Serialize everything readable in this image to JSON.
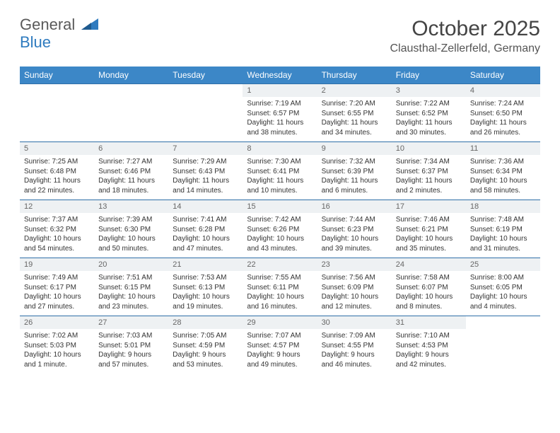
{
  "logo": {
    "word1": "General",
    "word2": "Blue"
  },
  "title": "October 2025",
  "location": "Clausthal-Zellerfeld, Germany",
  "colors": {
    "header_bg": "#3c87c7",
    "header_text": "#ffffff",
    "daynum_bg": "#eef1f3",
    "border": "#2f6fa8",
    "logo_gray": "#5a5a5a",
    "logo_blue": "#2f7bbf"
  },
  "daynames": [
    "Sunday",
    "Monday",
    "Tuesday",
    "Wednesday",
    "Thursday",
    "Friday",
    "Saturday"
  ],
  "weeks": [
    [
      {
        "n": "",
        "l1": "",
        "l2": "",
        "l3": "",
        "l4": "",
        "empty": true
      },
      {
        "n": "",
        "l1": "",
        "l2": "",
        "l3": "",
        "l4": "",
        "empty": true
      },
      {
        "n": "",
        "l1": "",
        "l2": "",
        "l3": "",
        "l4": "",
        "empty": true
      },
      {
        "n": "1",
        "l1": "Sunrise: 7:19 AM",
        "l2": "Sunset: 6:57 PM",
        "l3": "Daylight: 11 hours",
        "l4": "and 38 minutes."
      },
      {
        "n": "2",
        "l1": "Sunrise: 7:20 AM",
        "l2": "Sunset: 6:55 PM",
        "l3": "Daylight: 11 hours",
        "l4": "and 34 minutes."
      },
      {
        "n": "3",
        "l1": "Sunrise: 7:22 AM",
        "l2": "Sunset: 6:52 PM",
        "l3": "Daylight: 11 hours",
        "l4": "and 30 minutes."
      },
      {
        "n": "4",
        "l1": "Sunrise: 7:24 AM",
        "l2": "Sunset: 6:50 PM",
        "l3": "Daylight: 11 hours",
        "l4": "and 26 minutes."
      }
    ],
    [
      {
        "n": "5",
        "l1": "Sunrise: 7:25 AM",
        "l2": "Sunset: 6:48 PM",
        "l3": "Daylight: 11 hours",
        "l4": "and 22 minutes."
      },
      {
        "n": "6",
        "l1": "Sunrise: 7:27 AM",
        "l2": "Sunset: 6:46 PM",
        "l3": "Daylight: 11 hours",
        "l4": "and 18 minutes."
      },
      {
        "n": "7",
        "l1": "Sunrise: 7:29 AM",
        "l2": "Sunset: 6:43 PM",
        "l3": "Daylight: 11 hours",
        "l4": "and 14 minutes."
      },
      {
        "n": "8",
        "l1": "Sunrise: 7:30 AM",
        "l2": "Sunset: 6:41 PM",
        "l3": "Daylight: 11 hours",
        "l4": "and 10 minutes."
      },
      {
        "n": "9",
        "l1": "Sunrise: 7:32 AM",
        "l2": "Sunset: 6:39 PM",
        "l3": "Daylight: 11 hours",
        "l4": "and 6 minutes."
      },
      {
        "n": "10",
        "l1": "Sunrise: 7:34 AM",
        "l2": "Sunset: 6:37 PM",
        "l3": "Daylight: 11 hours",
        "l4": "and 2 minutes."
      },
      {
        "n": "11",
        "l1": "Sunrise: 7:36 AM",
        "l2": "Sunset: 6:34 PM",
        "l3": "Daylight: 10 hours",
        "l4": "and 58 minutes."
      }
    ],
    [
      {
        "n": "12",
        "l1": "Sunrise: 7:37 AM",
        "l2": "Sunset: 6:32 PM",
        "l3": "Daylight: 10 hours",
        "l4": "and 54 minutes."
      },
      {
        "n": "13",
        "l1": "Sunrise: 7:39 AM",
        "l2": "Sunset: 6:30 PM",
        "l3": "Daylight: 10 hours",
        "l4": "and 50 minutes."
      },
      {
        "n": "14",
        "l1": "Sunrise: 7:41 AM",
        "l2": "Sunset: 6:28 PM",
        "l3": "Daylight: 10 hours",
        "l4": "and 47 minutes."
      },
      {
        "n": "15",
        "l1": "Sunrise: 7:42 AM",
        "l2": "Sunset: 6:26 PM",
        "l3": "Daylight: 10 hours",
        "l4": "and 43 minutes."
      },
      {
        "n": "16",
        "l1": "Sunrise: 7:44 AM",
        "l2": "Sunset: 6:23 PM",
        "l3": "Daylight: 10 hours",
        "l4": "and 39 minutes."
      },
      {
        "n": "17",
        "l1": "Sunrise: 7:46 AM",
        "l2": "Sunset: 6:21 PM",
        "l3": "Daylight: 10 hours",
        "l4": "and 35 minutes."
      },
      {
        "n": "18",
        "l1": "Sunrise: 7:48 AM",
        "l2": "Sunset: 6:19 PM",
        "l3": "Daylight: 10 hours",
        "l4": "and 31 minutes."
      }
    ],
    [
      {
        "n": "19",
        "l1": "Sunrise: 7:49 AM",
        "l2": "Sunset: 6:17 PM",
        "l3": "Daylight: 10 hours",
        "l4": "and 27 minutes."
      },
      {
        "n": "20",
        "l1": "Sunrise: 7:51 AM",
        "l2": "Sunset: 6:15 PM",
        "l3": "Daylight: 10 hours",
        "l4": "and 23 minutes."
      },
      {
        "n": "21",
        "l1": "Sunrise: 7:53 AM",
        "l2": "Sunset: 6:13 PM",
        "l3": "Daylight: 10 hours",
        "l4": "and 19 minutes."
      },
      {
        "n": "22",
        "l1": "Sunrise: 7:55 AM",
        "l2": "Sunset: 6:11 PM",
        "l3": "Daylight: 10 hours",
        "l4": "and 16 minutes."
      },
      {
        "n": "23",
        "l1": "Sunrise: 7:56 AM",
        "l2": "Sunset: 6:09 PM",
        "l3": "Daylight: 10 hours",
        "l4": "and 12 minutes."
      },
      {
        "n": "24",
        "l1": "Sunrise: 7:58 AM",
        "l2": "Sunset: 6:07 PM",
        "l3": "Daylight: 10 hours",
        "l4": "and 8 minutes."
      },
      {
        "n": "25",
        "l1": "Sunrise: 8:00 AM",
        "l2": "Sunset: 6:05 PM",
        "l3": "Daylight: 10 hours",
        "l4": "and 4 minutes."
      }
    ],
    [
      {
        "n": "26",
        "l1": "Sunrise: 7:02 AM",
        "l2": "Sunset: 5:03 PM",
        "l3": "Daylight: 10 hours",
        "l4": "and 1 minute."
      },
      {
        "n": "27",
        "l1": "Sunrise: 7:03 AM",
        "l2": "Sunset: 5:01 PM",
        "l3": "Daylight: 9 hours",
        "l4": "and 57 minutes."
      },
      {
        "n": "28",
        "l1": "Sunrise: 7:05 AM",
        "l2": "Sunset: 4:59 PM",
        "l3": "Daylight: 9 hours",
        "l4": "and 53 minutes."
      },
      {
        "n": "29",
        "l1": "Sunrise: 7:07 AM",
        "l2": "Sunset: 4:57 PM",
        "l3": "Daylight: 9 hours",
        "l4": "and 49 minutes."
      },
      {
        "n": "30",
        "l1": "Sunrise: 7:09 AM",
        "l2": "Sunset: 4:55 PM",
        "l3": "Daylight: 9 hours",
        "l4": "and 46 minutes."
      },
      {
        "n": "31",
        "l1": "Sunrise: 7:10 AM",
        "l2": "Sunset: 4:53 PM",
        "l3": "Daylight: 9 hours",
        "l4": "and 42 minutes."
      },
      {
        "n": "",
        "l1": "",
        "l2": "",
        "l3": "",
        "l4": "",
        "empty": true
      }
    ]
  ]
}
